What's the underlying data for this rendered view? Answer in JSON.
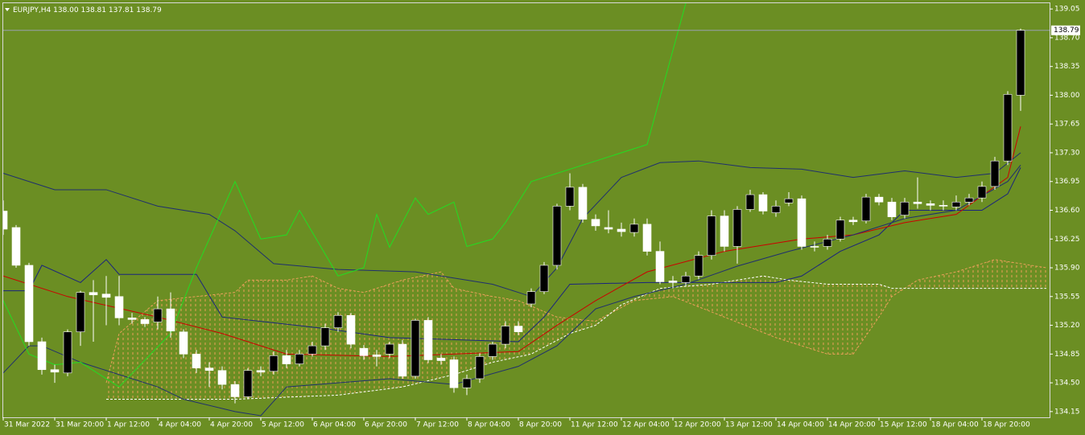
{
  "chart_data": {
    "type": "candlestick",
    "header": {
      "symbol": "EURJPY,H4",
      "ohlc": [
        "138.00",
        "138.81",
        "137.81",
        "138.79"
      ]
    },
    "categories": [
      "31 Mar 2022",
      null,
      null,
      null,
      "31 Mar 20:00",
      null,
      null,
      null,
      "1 Apr 12:00",
      null,
      null,
      null,
      "4 Apr 04:00",
      null,
      null,
      null,
      "4 Apr 20:00",
      null,
      null,
      null,
      "5 Apr 12:00",
      null,
      null,
      null,
      "6 Apr 04:00",
      null,
      null,
      null,
      "6 Apr 20:00",
      null,
      null,
      null,
      "7 Apr 12:00",
      null,
      null,
      null,
      "8 Apr 04:00",
      null,
      null,
      null,
      "8 Apr 20:00",
      null,
      null,
      null,
      "11 Apr 12:00",
      null,
      null,
      null,
      "12 Apr 04:00",
      null,
      null,
      null,
      "12 Apr 20:00",
      null,
      null,
      null,
      "13 Apr 12:00",
      null,
      null,
      null,
      "14 Apr 04:00",
      null,
      null,
      null,
      "14 Apr 20:00",
      null,
      null,
      null,
      "15 Apr 12:00",
      null,
      null,
      null,
      "18 Apr 04:00",
      null,
      null,
      null,
      "18 Apr 20:00",
      null,
      null,
      null
    ],
    "open": [
      136.59,
      136.39,
      135.93,
      135.0,
      134.66,
      134.62,
      135.12,
      135.6,
      135.58,
      135.55,
      135.29,
      135.27,
      135.24,
      135.4,
      135.12,
      134.85,
      134.68,
      134.65,
      134.48,
      134.33,
      134.65,
      134.64,
      134.83,
      134.73,
      134.85,
      134.95,
      135.17,
      135.32,
      134.92,
      134.84,
      134.85,
      134.97,
      134.58,
      135.26,
      134.8,
      134.78,
      134.44,
      134.55,
      134.82,
      134.97,
      135.19,
      135.46,
      135.61,
      135.93,
      136.65,
      136.88,
      136.49,
      136.39,
      136.37,
      136.33,
      136.43,
      136.1,
      135.74,
      135.72,
      135.8,
      136.05,
      136.53,
      136.16,
      136.61,
      136.79,
      136.57,
      136.69,
      136.74,
      136.16,
      136.16,
      136.25,
      136.48,
      136.47,
      136.76,
      136.7,
      136.54,
      136.7,
      136.68,
      136.66,
      136.64,
      136.7,
      136.75,
      136.89,
      137.2,
      138.0
    ],
    "high": [
      136.72,
      136.42,
      135.96,
      135.05,
      134.72,
      135.15,
      135.62,
      135.75,
      135.8,
      135.8,
      135.35,
      135.3,
      135.55,
      135.6,
      135.15,
      134.9,
      134.75,
      134.7,
      134.52,
      134.68,
      134.7,
      134.88,
      134.9,
      134.9,
      135.0,
      135.22,
      135.36,
      135.35,
      134.96,
      134.9,
      135.0,
      135.02,
      135.28,
      135.3,
      134.85,
      134.82,
      134.6,
      134.86,
      135.0,
      135.25,
      135.25,
      135.65,
      135.97,
      136.68,
      137.05,
      136.92,
      136.55,
      136.6,
      136.45,
      136.5,
      136.5,
      136.22,
      135.8,
      135.85,
      136.1,
      136.6,
      136.6,
      136.65,
      136.85,
      136.82,
      136.72,
      136.82,
      136.78,
      136.22,
      136.3,
      136.52,
      136.52,
      136.8,
      136.8,
      136.75,
      136.75,
      137.0,
      136.72,
      136.72,
      136.78,
      136.8,
      136.95,
      137.25,
      138.05,
      138.81
    ],
    "low": [
      136.3,
      135.9,
      134.95,
      134.6,
      134.5,
      134.58,
      134.95,
      135.0,
      135.2,
      135.2,
      135.22,
      135.18,
      135.15,
      135.05,
      134.8,
      134.62,
      134.45,
      134.42,
      134.25,
      134.3,
      134.58,
      134.6,
      134.68,
      134.7,
      134.82,
      134.9,
      135.12,
      134.92,
      134.78,
      134.7,
      134.8,
      134.55,
      134.55,
      134.74,
      134.72,
      134.38,
      134.35,
      134.5,
      134.78,
      134.92,
      135.08,
      135.42,
      135.58,
      135.88,
      136.6,
      136.45,
      136.35,
      136.32,
      136.28,
      136.28,
      136.05,
      135.7,
      135.65,
      135.68,
      135.76,
      136.0,
      136.1,
      135.95,
      136.58,
      136.55,
      136.52,
      136.65,
      136.12,
      136.1,
      136.12,
      136.22,
      136.42,
      136.44,
      136.66,
      136.48,
      136.5,
      136.62,
      136.6,
      136.6,
      136.6,
      136.66,
      136.7,
      136.85,
      137.15,
      137.81
    ],
    "close": [
      136.37,
      135.93,
      135.0,
      134.66,
      134.63,
      135.12,
      135.6,
      135.57,
      135.54,
      135.29,
      135.27,
      135.22,
      135.4,
      135.13,
      134.85,
      134.68,
      134.65,
      134.48,
      134.33,
      134.65,
      134.63,
      134.83,
      134.73,
      134.85,
      134.95,
      135.17,
      135.32,
      134.97,
      134.83,
      134.82,
      134.97,
      134.58,
      135.26,
      134.78,
      134.77,
      134.44,
      134.55,
      134.82,
      134.97,
      135.19,
      135.12,
      135.61,
      135.93,
      136.65,
      136.88,
      136.49,
      136.41,
      136.37,
      136.34,
      136.43,
      136.1,
      135.73,
      135.72,
      135.8,
      136.05,
      136.53,
      136.16,
      136.61,
      136.79,
      136.59,
      136.65,
      136.74,
      136.16,
      136.15,
      136.25,
      136.48,
      136.46,
      136.76,
      136.7,
      136.52,
      136.7,
      136.68,
      136.66,
      136.65,
      136.7,
      136.75,
      136.89,
      137.2,
      138.01,
      138.79
    ],
    "bull_color": "#000000",
    "bear_color": "#ffffff",
    "wick_color": "#ffffff",
    "ylim": [
      134.08,
      139.12
    ],
    "yticks": [
      139.05,
      {
        "value": 138.7,
        "label": "138.70"
      },
      138.35,
      {
        "value": 138,
        "label": "138.00"
      },
      137.65,
      {
        "value": 137.3,
        "label": "137.30"
      },
      136.95,
      {
        "value": 136.6,
        "label": "136.60"
      },
      136.25,
      {
        "value": 135.9,
        "label": "135.90"
      },
      135.55,
      {
        "value": 135.2,
        "label": "135.20"
      },
      134.85,
      {
        "value": 134.5,
        "label": "134.50"
      },
      134.15
    ],
    "last_price": {
      "value": 138.79,
      "label": "138.79"
    },
    "cloud": {
      "color": "#e9a05a",
      "edge_color": "#ffffff",
      "a": {
        "x": [
          8,
          9,
          12,
          18,
          19,
          22,
          24,
          26,
          28,
          31,
          34,
          35,
          38,
          40,
          43,
          46,
          49,
          52,
          56,
          60,
          64,
          66,
          68,
          69,
          71,
          74,
          77,
          79,
          81
        ],
        "values": [
          134.5,
          135.1,
          135.5,
          135.6,
          135.75,
          135.75,
          135.8,
          135.65,
          135.6,
          135.75,
          135.85,
          135.65,
          135.55,
          135.5,
          135.3,
          135.25,
          135.5,
          135.55,
          135.3,
          135.05,
          134.85,
          134.85,
          135.3,
          135.55,
          135.75,
          135.85,
          136.0,
          135.95,
          135.9
        ]
      },
      "b": {
        "x": [
          8,
          18,
          26,
          31,
          35,
          38,
          41,
          44,
          46,
          48,
          51,
          55,
          59,
          61,
          64,
          68,
          69,
          71,
          81
        ],
        "values": [
          134.3,
          134.3,
          134.35,
          134.45,
          134.6,
          134.75,
          134.85,
          135.1,
          135.2,
          135.45,
          135.65,
          135.7,
          135.8,
          135.75,
          135.7,
          135.7,
          135.65,
          135.65,
          135.65
        ]
      }
    },
    "series": [
      {
        "color": "#1a237e",
        "x": [
          0,
          2,
          3,
          6,
          8,
          9,
          15,
          17,
          25,
          30,
          40,
          42,
          44,
          50,
          60,
          62,
          65,
          68,
          70,
          76,
          78,
          79
        ],
        "values": [
          135.62,
          135.62,
          135.93,
          135.72,
          136.0,
          135.82,
          135.82,
          135.3,
          135.16,
          135.05,
          135.0,
          135.3,
          135.7,
          135.72,
          135.72,
          135.8,
          136.1,
          136.3,
          136.6,
          136.6,
          136.8,
          137.12
        ]
      },
      {
        "color": "#cc0000",
        "x": [
          0,
          5,
          12,
          17,
          22,
          30,
          40,
          43,
          46,
          50,
          56,
          62,
          66,
          70,
          74,
          78,
          79
        ],
        "values": [
          135.8,
          135.55,
          135.3,
          135.1,
          134.85,
          134.82,
          134.88,
          135.2,
          135.5,
          135.85,
          136.1,
          136.25,
          136.3,
          136.45,
          136.55,
          137.0,
          137.62
        ]
      },
      {
        "color": "#1f2f6e",
        "x": [
          0,
          2,
          4,
          8,
          12,
          16,
          18,
          21,
          26,
          32,
          38,
          40,
          41,
          43,
          45,
          48,
          51,
          54,
          58,
          62,
          66,
          70,
          74,
          77,
          79
        ],
        "values": [
          137.05,
          136.95,
          136.85,
          136.85,
          136.65,
          136.55,
          136.35,
          135.95,
          135.88,
          135.85,
          135.7,
          135.6,
          135.55,
          135.9,
          136.5,
          137.0,
          137.18,
          137.2,
          137.12,
          137.1,
          137.0,
          137.08,
          137.0,
          137.05,
          137.3
        ]
      },
      {
        "color": "#1f2f6e",
        "x": [
          0,
          2,
          3,
          6,
          9,
          12,
          14,
          18,
          20,
          22,
          30,
          35,
          40,
          43,
          46,
          49,
          53,
          57,
          61,
          66,
          70,
          74,
          78,
          79
        ],
        "values": [
          134.62,
          134.95,
          134.95,
          134.75,
          134.6,
          134.45,
          134.3,
          134.15,
          134.1,
          134.45,
          134.55,
          134.48,
          134.7,
          134.95,
          135.4,
          135.55,
          135.7,
          135.92,
          136.1,
          136.3,
          136.5,
          136.6,
          136.95,
          137.15
        ]
      },
      {
        "color": "#22dd22",
        "x": [
          0,
          2,
          4,
          6,
          9,
          13,
          15,
          18,
          20,
          22,
          23,
          26,
          28,
          29,
          30,
          32,
          33,
          35,
          36,
          38,
          39,
          41,
          50,
          53
        ],
        "values": [
          135.5,
          134.85,
          134.72,
          134.75,
          134.45,
          135.1,
          135.9,
          136.95,
          136.25,
          136.3,
          136.6,
          135.8,
          135.9,
          136.55,
          136.15,
          136.75,
          136.55,
          136.7,
          136.16,
          136.25,
          136.45,
          136.95,
          137.4,
          139.12
        ]
      }
    ]
  }
}
